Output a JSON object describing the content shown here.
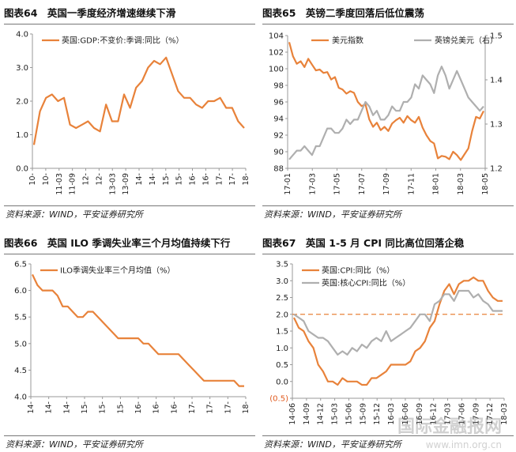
{
  "chart_data": [
    {
      "id": "fig64",
      "type": "line",
      "title": "图表64　英国一季度经济增速继续下滑",
      "source": "资料来源：WIND，平安证券研究所",
      "ylim": [
        0,
        4.0
      ],
      "yticks": [
        "0.0",
        "1.0",
        "2.0",
        "3.0",
        "4.0"
      ],
      "xtick_labels": [
        "10-",
        "10-",
        "11-03",
        "11-09",
        "12-",
        "12-",
        "13-03",
        "13-09",
        "14-",
        "14-",
        "15-",
        "15-",
        "16-",
        "16-",
        "17-",
        "17-",
        "18-"
      ],
      "series": [
        {
          "name": "英国:GDP:不变价:季调:同比（%）",
          "color": "#E8823A",
          "values": [
            0.7,
            1.7,
            2.1,
            2.2,
            2.0,
            2.1,
            1.3,
            1.2,
            1.3,
            1.4,
            1.2,
            1.1,
            1.9,
            1.4,
            1.4,
            2.2,
            1.8,
            2.4,
            2.6,
            3.0,
            3.2,
            3.1,
            3.3,
            2.8,
            2.3,
            2.1,
            2.1,
            1.9,
            1.8,
            2.0,
            2.0,
            2.1,
            1.8,
            1.8,
            1.4,
            1.2
          ]
        }
      ],
      "legend": "top-left"
    },
    {
      "id": "fig65",
      "type": "line",
      "title": "图表65　英镑二季度回落后低位震荡",
      "source": "资料来源：WIND，平安证券研究所",
      "ylim": [
        88,
        104
      ],
      "yticks": [
        "88",
        "90",
        "92",
        "94",
        "96",
        "98",
        "100",
        "102",
        "104"
      ],
      "y2lim": [
        1.2,
        1.5
      ],
      "y2ticks": [
        "1.2",
        "1.3",
        "1.4",
        "1.5"
      ],
      "xtick_labels": [
        "17-01",
        "17-03",
        "17-05",
        "17-07",
        "17-09",
        "17-11",
        "18-01",
        "18-03",
        "18-05"
      ],
      "series": [
        {
          "name": "美元指数",
          "color": "#E8823A",
          "axis": "left",
          "values": [
            103.2,
            101.5,
            100.6,
            100.9,
            100.2,
            101.2,
            100.5,
            99.8,
            99.9,
            99.5,
            99.6,
            98.7,
            99.0,
            97.7,
            97.5,
            97.0,
            97.3,
            97.1,
            96.0,
            95.5,
            95.7,
            93.9,
            93.0,
            93.5,
            92.6,
            93.0,
            92.5,
            93.4,
            93.8,
            94.1,
            93.5,
            94.3,
            93.8,
            93.5,
            94.2,
            92.9,
            92.0,
            91.3,
            91.0,
            89.2,
            89.5,
            89.4,
            89.1,
            90.0,
            89.6,
            89.0,
            89.7,
            90.4,
            92.5,
            94.2,
            94.0,
            94.9
          ]
        },
        {
          "name": "英镑兑美元（右）",
          "color": "#AFAFAF",
          "axis": "right",
          "values": [
            1.22,
            1.23,
            1.24,
            1.24,
            1.25,
            1.24,
            1.23,
            1.25,
            1.25,
            1.27,
            1.29,
            1.29,
            1.28,
            1.28,
            1.29,
            1.31,
            1.3,
            1.31,
            1.31,
            1.33,
            1.35,
            1.34,
            1.32,
            1.33,
            1.31,
            1.31,
            1.32,
            1.34,
            1.33,
            1.33,
            1.35,
            1.35,
            1.36,
            1.39,
            1.38,
            1.41,
            1.4,
            1.39,
            1.37,
            1.41,
            1.43,
            1.41,
            1.38,
            1.4,
            1.42,
            1.4,
            1.38,
            1.36,
            1.35,
            1.34,
            1.33,
            1.34
          ]
        }
      ],
      "legend": "top"
    },
    {
      "id": "fig66",
      "type": "line",
      "title": "图表66　英国 ILO 季调失业率三个月均值持续下行",
      "source": "资料来源：WIND，平安证券研究所",
      "ylim": [
        4.0,
        6.5
      ],
      "yticks": [
        "4.0",
        "4.5",
        "5.0",
        "5.5",
        "6.0",
        "6.5"
      ],
      "xtick_labels": [
        "14-",
        "14-",
        "14-",
        "15-",
        "15-",
        "15-",
        "16-",
        "16-",
        "16-",
        "17-",
        "17-",
        "17-",
        "18-"
      ],
      "series": [
        {
          "name": "ILO季调失业率三个月均值（%）",
          "color": "#E8823A",
          "values": [
            6.3,
            6.1,
            6.0,
            6.0,
            6.0,
            5.9,
            5.7,
            5.7,
            5.6,
            5.5,
            5.5,
            5.6,
            5.6,
            5.5,
            5.4,
            5.3,
            5.2,
            5.1,
            5.1,
            5.1,
            5.1,
            5.1,
            5.0,
            5.0,
            4.9,
            4.8,
            4.8,
            4.8,
            4.8,
            4.8,
            4.7,
            4.6,
            4.5,
            4.4,
            4.3,
            4.3,
            4.3,
            4.3,
            4.3,
            4.3,
            4.3,
            4.2,
            4.2
          ]
        }
      ],
      "legend": "top-left"
    },
    {
      "id": "fig67",
      "type": "line",
      "title": "图表67　英国 1-5 月 CPI 同比高位回落企稳",
      "source": "资料来源：WIND，平安证券研究所",
      "ylim": [
        -0.5,
        3.5
      ],
      "yticks": [
        "(0.5)",
        "0.0",
        "0.5",
        "1.0",
        "1.5",
        "2.0",
        "2.5",
        "3.0",
        "3.5"
      ],
      "xtick_labels": [
        "14-06",
        "14-09",
        "14-12",
        "15-03",
        "15-06",
        "15-09",
        "15-12",
        "16-03",
        "16-06",
        "16-09",
        "16-12",
        "17-03",
        "17-06",
        "17-09",
        "17-12",
        "18-03"
      ],
      "reference_line": 2.0,
      "series": [
        {
          "name": "英国:CPI:同比（%）",
          "color": "#E8823A",
          "values": [
            1.9,
            1.6,
            1.5,
            1.2,
            1.0,
            0.5,
            0.3,
            0.0,
            0.0,
            -0.1,
            0.1,
            0.0,
            0.0,
            0.0,
            -0.1,
            -0.1,
            0.1,
            0.1,
            0.2,
            0.3,
            0.5,
            0.5,
            0.5,
            0.5,
            0.6,
            0.9,
            1.0,
            1.2,
            1.6,
            1.8,
            2.3,
            2.7,
            2.9,
            2.6,
            2.9,
            3.0,
            3.0,
            3.1,
            3.0,
            3.0,
            2.7,
            2.5,
            2.4,
            2.4
          ]
        },
        {
          "name": "英国:核心CPI:同比（%）",
          "color": "#AFAFAF",
          "values": [
            2.0,
            1.9,
            1.8,
            1.5,
            1.4,
            1.3,
            1.3,
            1.2,
            1.0,
            0.8,
            0.9,
            0.8,
            1.0,
            0.9,
            1.1,
            1.0,
            1.2,
            1.3,
            1.2,
            1.5,
            1.2,
            1.3,
            1.4,
            1.5,
            1.6,
            1.8,
            2.0,
            2.0,
            1.8,
            2.3,
            2.4,
            2.6,
            2.6,
            2.4,
            2.7,
            2.7,
            2.7,
            2.5,
            2.6,
            2.4,
            2.3,
            2.1,
            2.1,
            2.1
          ]
        }
      ],
      "legend": "top-left"
    }
  ],
  "watermark": {
    "main": "国际金融报网",
    "sub": "www.imn.org.cn"
  }
}
